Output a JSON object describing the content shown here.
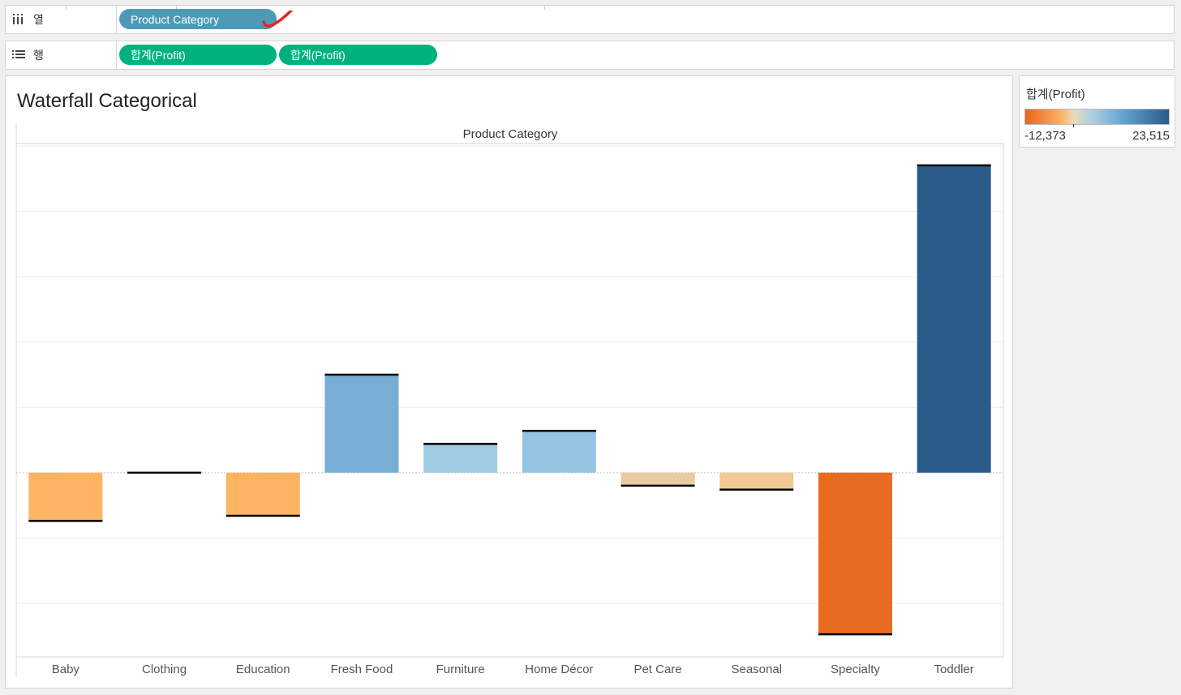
{
  "shelves": {
    "columns": {
      "label": "열",
      "icon": "columns-icon",
      "pills": [
        "Product Category"
      ]
    },
    "rows": {
      "label": "행",
      "icon": "rows-icon",
      "pills": [
        "합계(Profit)",
        "합계(Profit)"
      ]
    }
  },
  "viz": {
    "title": "Waterfall Categorical",
    "header": "Product Category"
  },
  "legend": {
    "title": "합계(Profit)",
    "min_label": "-12,373",
    "max_label": "23,515",
    "colors": {
      "min": "#e8651a",
      "mid_low": "#fdae61",
      "neutral": "#e9dac0",
      "mid_high": "#a6cde6",
      "max": "#2a5a8a"
    }
  },
  "chart_data": {
    "type": "bar",
    "title": "Waterfall Categorical",
    "xlabel": "Product Category",
    "ylabel": "",
    "categories": [
      "Baby",
      "Clothing",
      "Education",
      "Fresh Food",
      "Furniture",
      "Home Décor",
      "Pet Care",
      "Seasonal",
      "Specialty",
      "Toddler"
    ],
    "values": [
      -3700,
      0,
      -3300,
      7500,
      2200,
      3200,
      -1000,
      -1300,
      -12373,
      23515
    ],
    "colors": [
      "#fdb462",
      "#fdd9a8",
      "#fdb462",
      "#78aed4",
      "#9ecae3",
      "#95c4e2",
      "#e9cba1",
      "#efc894",
      "#e86b22",
      "#2a5a8a"
    ],
    "ylim": [
      -14100,
      25000
    ],
    "grid": true
  }
}
